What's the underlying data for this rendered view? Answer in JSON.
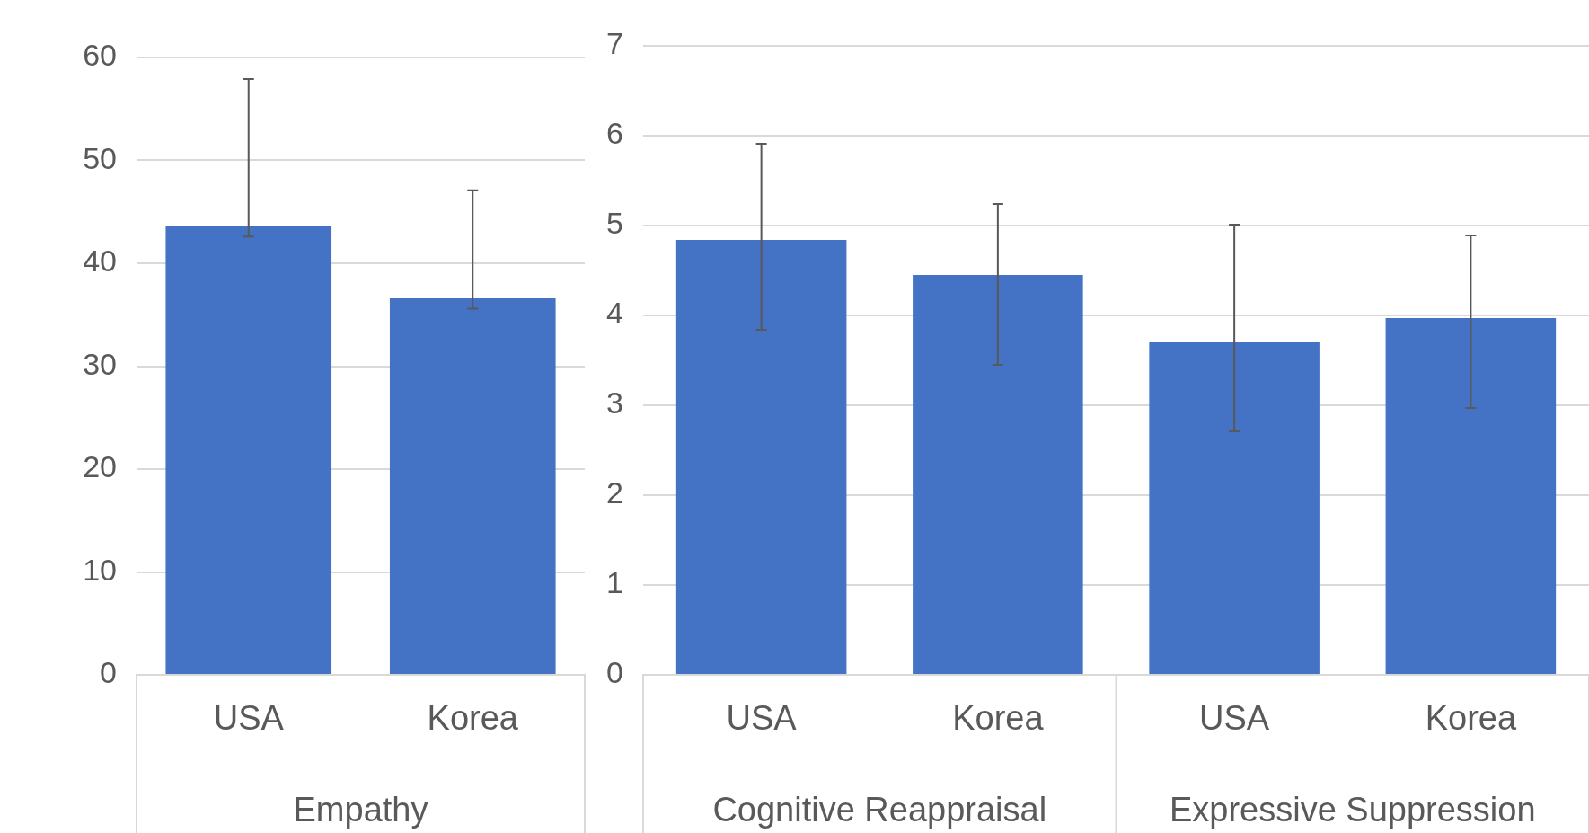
{
  "chart_data": [
    {
      "type": "bar",
      "categories": [
        "USA",
        "Korea"
      ],
      "values": [
        43.6,
        36.6
      ],
      "color": "#4472c4",
      "errors": [
        [
          42.6,
          57.9
        ],
        [
          35.6,
          47.1
        ]
      ],
      "ylim": [
        0,
        60
      ],
      "yticks": [
        0,
        10,
        20,
        30,
        40,
        50,
        60
      ],
      "grid": "y",
      "annotations": [
        "Empathy"
      ]
    },
    {
      "type": "bar",
      "categories": [
        "USA",
        "Korea",
        "USA",
        "Korea"
      ],
      "values": [
        4.84,
        4.45,
        3.7,
        3.97
      ],
      "color": "#4472c4",
      "errors": [
        [
          3.84,
          5.91
        ],
        [
          3.45,
          5.24
        ],
        [
          2.71,
          5.01
        ],
        [
          2.97,
          4.89
        ]
      ],
      "ylim": [
        0,
        7
      ],
      "yticks": [
        0,
        1,
        2,
        3,
        4,
        5,
        6,
        7
      ],
      "grid": "y",
      "annotations": [
        "Cognitive Reappraisal",
        "Expressive Suppression"
      ]
    }
  ]
}
